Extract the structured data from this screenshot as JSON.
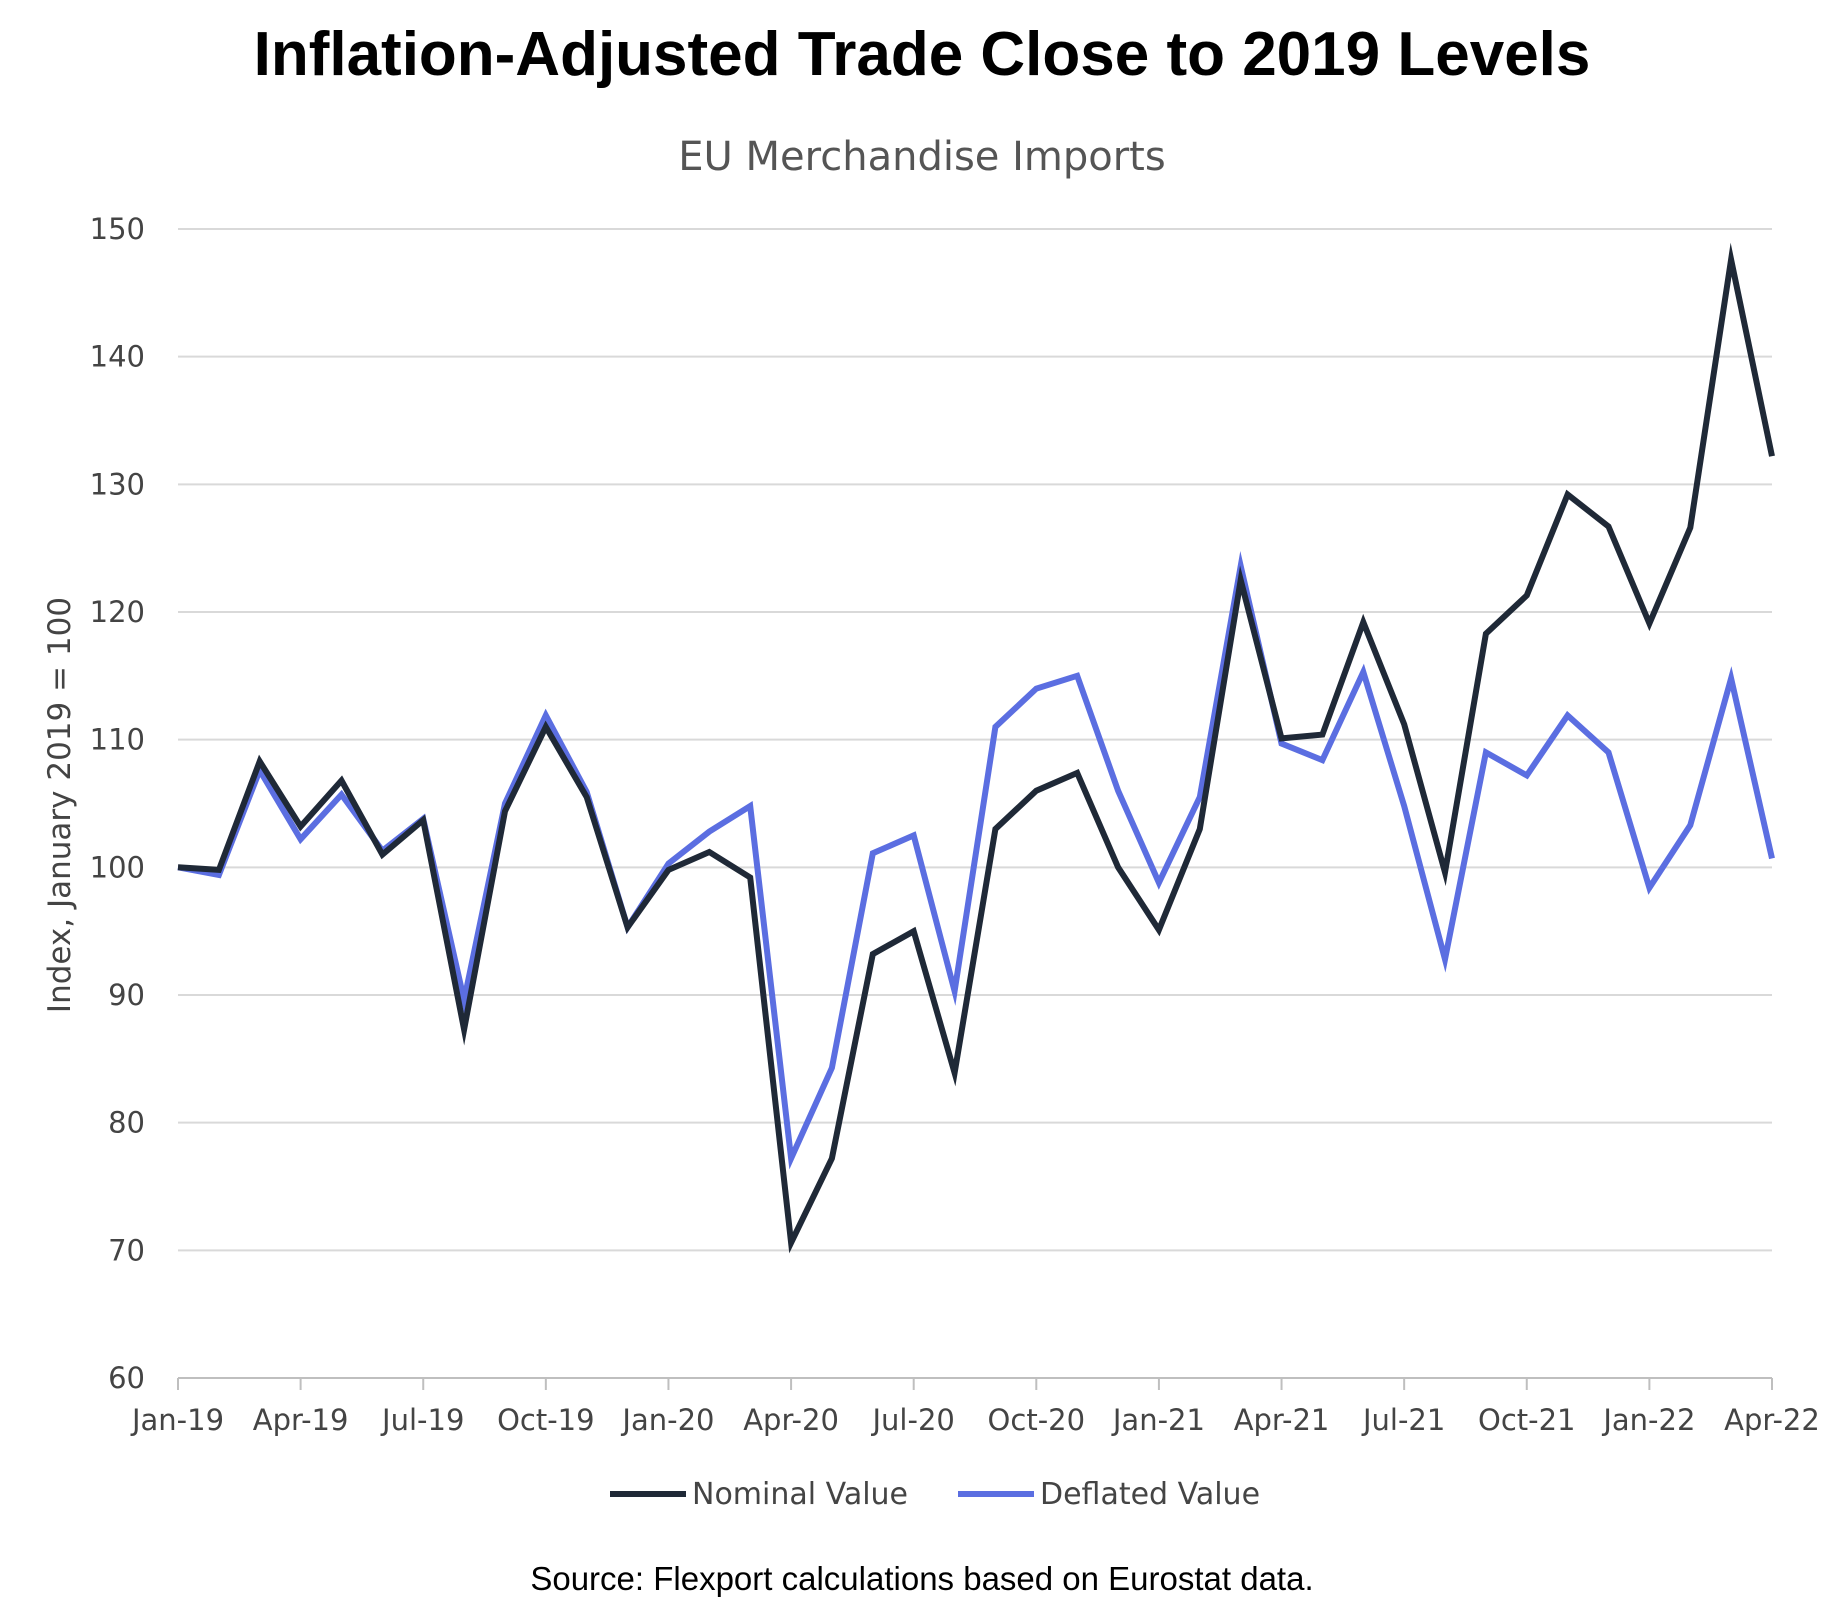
{
  "chart_data": {
    "type": "line",
    "title": "Inflation-Adjusted Trade Close to 2019 Levels",
    "subtitle": "EU Merchandise Imports",
    "xlabel": "",
    "ylabel": "Index, January 2019 = 100",
    "ylim": [
      60,
      150
    ],
    "yticks": [
      "60",
      "70",
      "80",
      "90",
      "100",
      "110",
      "120",
      "130",
      "140",
      "150"
    ],
    "grid": true,
    "legend_position": "bottom-center",
    "x": [
      "Jan-19",
      "Feb-19",
      "Mar-19",
      "Apr-19",
      "May-19",
      "Jun-19",
      "Jul-19",
      "Aug-19",
      "Sep-19",
      "Oct-19",
      "Nov-19",
      "Dec-19",
      "Jan-20",
      "Feb-20",
      "Mar-20",
      "Apr-20",
      "May-20",
      "Jun-20",
      "Jul-20",
      "Aug-20",
      "Sep-20",
      "Oct-20",
      "Nov-20",
      "Dec-20",
      "Jan-21",
      "Feb-21",
      "Mar-21",
      "Apr-21",
      "May-21",
      "Jun-21",
      "Jul-21",
      "Aug-21",
      "Sep-21",
      "Oct-21",
      "Nov-21",
      "Dec-21",
      "Jan-22",
      "Feb-22",
      "Mar-22",
      "Apr-22"
    ],
    "xticks": [
      "Jan-19",
      "Apr-19",
      "Jul-19",
      "Oct-19",
      "Jan-20",
      "Apr-20",
      "Jul-20",
      "Oct-20",
      "Jan-21",
      "Apr-21",
      "Jul-21",
      "Oct-21",
      "Jan-22",
      "Apr-22"
    ],
    "series": [
      {
        "name": "Nominal Value",
        "color": "#1f2937",
        "values": [
          100,
          99.8,
          108.3,
          103.2,
          106.8,
          101,
          103.7,
          87.3,
          104.4,
          111,
          105.5,
          95.3,
          99.8,
          101.2,
          99.2,
          70.6,
          77.2,
          93.2,
          95,
          83.9,
          103,
          106,
          107.4,
          100,
          95.1,
          103,
          122.5,
          110.1,
          110.4,
          119.2,
          111.2,
          99.6,
          118.3,
          121.3,
          129.2,
          126.7,
          119.1,
          126.6,
          147.6,
          132.2
        ]
      },
      {
        "name": "Deflated Value",
        "color": "#5b6ee1",
        "values": [
          100,
          99.4,
          107.6,
          102.2,
          105.7,
          101.3,
          103.8,
          89.6,
          105,
          111.9,
          105.9,
          95.3,
          100.3,
          102.8,
          104.8,
          77.2,
          84.3,
          101.1,
          102.5,
          90.3,
          111,
          114,
          115,
          106,
          98.8,
          105.5,
          123.6,
          109.7,
          108.4,
          115.3,
          104.8,
          92.8,
          109,
          107.2,
          111.9,
          109,
          98.4,
          103.3,
          114.8,
          100.7
        ]
      }
    ],
    "source": "Source: Flexport calculations based on Eurostat data."
  }
}
